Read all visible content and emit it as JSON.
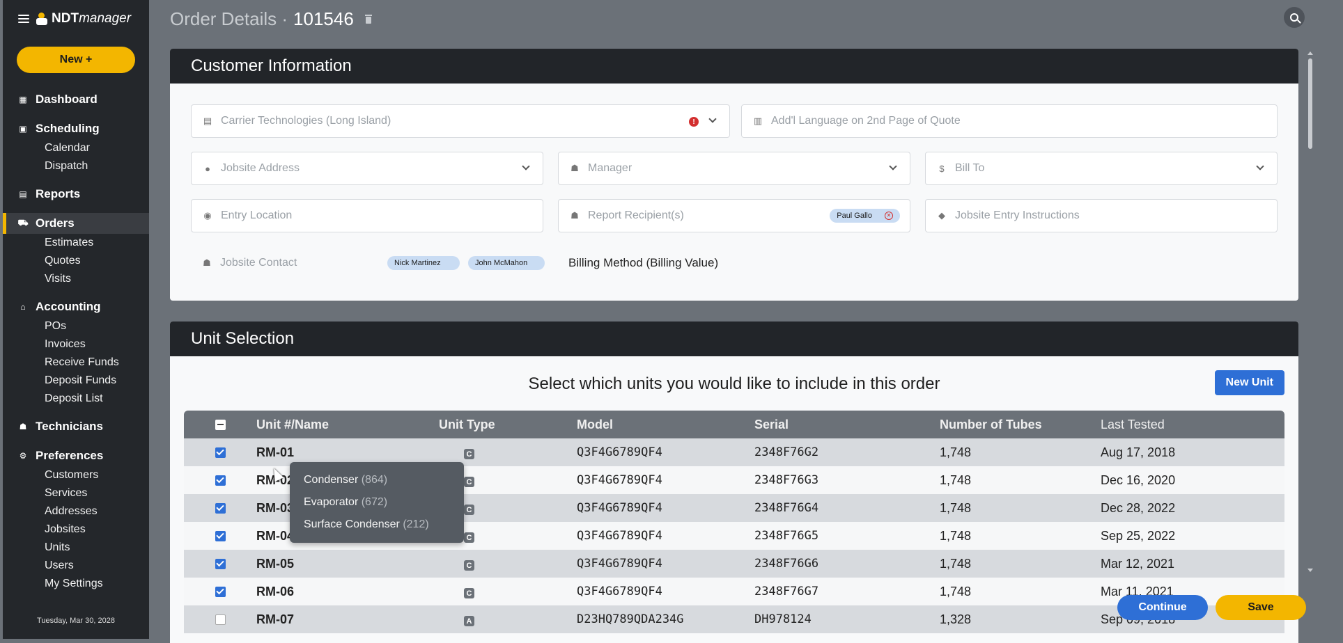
{
  "app": {
    "brand_bold": "NDT",
    "brand_italic": "manager"
  },
  "sidebar": {
    "new_button": "New +",
    "sections": [
      {
        "label": "Dashboard",
        "icon": "dashboard-icon",
        "items": []
      },
      {
        "label": "Scheduling",
        "icon": "calendar-icon",
        "items": [
          "Calendar",
          "Dispatch"
        ]
      },
      {
        "label": "Reports",
        "icon": "report-icon",
        "items": []
      },
      {
        "label": "Orders",
        "icon": "cart-icon",
        "active": true,
        "items": [
          "Estimates",
          "Quotes",
          "Visits"
        ]
      },
      {
        "label": "Accounting",
        "icon": "bank-icon",
        "items": [
          "POs",
          "Invoices",
          "Receive Funds",
          "Deposit Funds",
          "Deposit List"
        ]
      },
      {
        "label": "Technicians",
        "icon": "technician-icon",
        "items": []
      },
      {
        "label": "Preferences",
        "icon": "gear-icon",
        "items": [
          "Customers",
          "Services",
          "Addresses",
          "Jobsites",
          "Units",
          "Users",
          "My Settings"
        ]
      }
    ],
    "date": "Tuesday, Mar 30, 2028"
  },
  "header": {
    "title": "Order Details · ",
    "order_id": "101546"
  },
  "customer_info": {
    "title": "Customer Information",
    "customer_placeholder": "Carrier Technologies (Long Island)",
    "addl_language_placeholder": "Add'l Language on 2nd Page of Quote",
    "jobsite_address_placeholder": "Jobsite Address",
    "manager_placeholder": "Manager",
    "bill_to_placeholder": "Bill To",
    "entry_location_placeholder": "Entry Location",
    "report_recipients_placeholder": "Report Recipient(s)",
    "report_recipient_chip": "Paul Gallo",
    "entry_instructions_placeholder": "Jobsite Entry Instructions",
    "jobsite_contact_label": "Jobsite Contact",
    "contacts": [
      "Nick Martinez",
      "John McMahon"
    ],
    "billing_method": "Billing Method (Billing Value)"
  },
  "unit_selection": {
    "title": "Unit Selection",
    "subtitle": "Select which units you would like to include in this order",
    "new_unit_button": "New Unit",
    "columns": [
      "Unit #/Name",
      "Unit Type",
      "Model",
      "Serial",
      "Number of Tubes",
      "Last Tested"
    ],
    "rows": [
      {
        "name": "RM-01",
        "type": "C",
        "model": "Q3F4G6789QF4",
        "serial": "2348F76G2",
        "tubes": "1,748",
        "last_tested": "Aug 17, 2018",
        "checked": true
      },
      {
        "name": "RM-02",
        "type": "C",
        "model": "Q3F4G6789QF4",
        "serial": "2348F76G3",
        "tubes": "1,748",
        "last_tested": "Dec 16, 2020",
        "checked": true
      },
      {
        "name": "RM-03",
        "type": "C",
        "model": "Q3F4G6789QF4",
        "serial": "2348F76G4",
        "tubes": "1,748",
        "last_tested": "Dec 28, 2022",
        "checked": true
      },
      {
        "name": "RM-04",
        "type": "C",
        "model": "Q3F4G6789QF4",
        "serial": "2348F76G5",
        "tubes": "1,748",
        "last_tested": "Sep 25, 2022",
        "checked": true
      },
      {
        "name": "RM-05",
        "type": "C",
        "model": "Q3F4G6789QF4",
        "serial": "2348F76G6",
        "tubes": "1,748",
        "last_tested": "Mar 12, 2021",
        "checked": true
      },
      {
        "name": "RM-06",
        "type": "C",
        "model": "Q3F4G6789QF4",
        "serial": "2348F76G7",
        "tubes": "1,748",
        "last_tested": "Mar 11, 2021",
        "checked": true
      },
      {
        "name": "RM-07",
        "type": "A",
        "model": "D23HQ789QDA234G",
        "serial": "DH978124",
        "tubes": "1,328",
        "last_tested": "Sep 09, 2018",
        "checked": false
      }
    ]
  },
  "tooltip": {
    "items": [
      {
        "label": "Condenser",
        "count": "(864)"
      },
      {
        "label": "Evaporator",
        "count": "(672)"
      },
      {
        "label": "Surface Condenser",
        "count": "(212)"
      }
    ]
  },
  "actions": {
    "continue": "Continue",
    "save": "Save"
  },
  "colors": {
    "accent_yellow": "#f3b600",
    "accent_blue": "#2e6fd6",
    "sidebar_bg": "#24272b",
    "error": "#d32f2f"
  }
}
